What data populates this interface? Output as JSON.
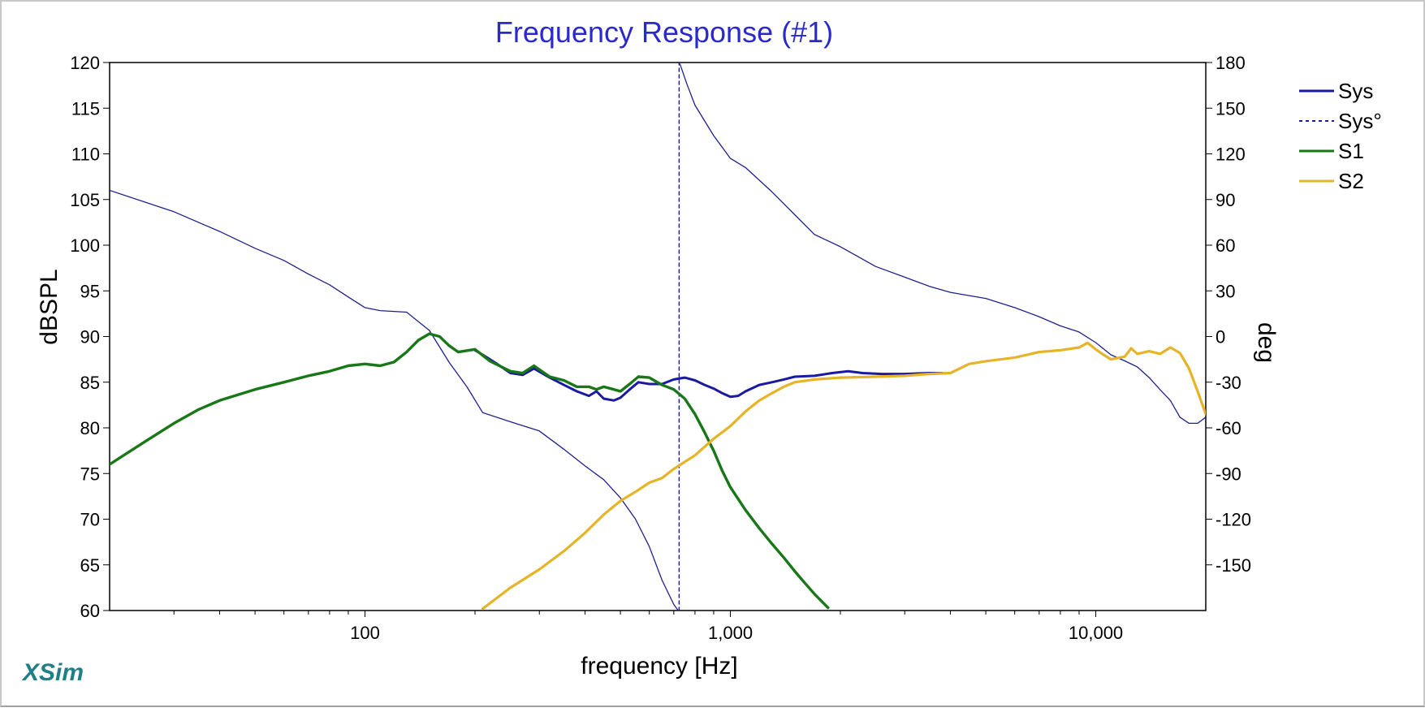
{
  "chart_data": {
    "type": "line",
    "title": "Frequency Response (#1)",
    "xlabel": "frequency [Hz]",
    "ylabel": "dBSPL",
    "y2label": "deg",
    "xscale": "log",
    "xlim": [
      20,
      20000
    ],
    "ylim": [
      60,
      120
    ],
    "y2lim": [
      -180,
      180
    ],
    "grid": true,
    "legend_position": "right",
    "x_tick_labels": [
      {
        "value": 100,
        "label": "100"
      },
      {
        "value": 1000,
        "label": "1,000"
      },
      {
        "value": 10000,
        "label": "10,000"
      }
    ],
    "y_ticks": [
      60,
      65,
      70,
      75,
      80,
      85,
      90,
      95,
      100,
      105,
      110,
      115,
      120
    ],
    "y2_tick_labels": [
      {
        "value": 180,
        "label": "180"
      },
      {
        "value": 150,
        "label": "150"
      },
      {
        "value": 120,
        "label": "120"
      },
      {
        "value": 90,
        "label": "90"
      },
      {
        "value": 60,
        "label": "60"
      },
      {
        "value": 30,
        "label": "30"
      },
      {
        "value": 0,
        "label": "0"
      },
      {
        "value": -30,
        "label": "-30"
      },
      {
        "value": -60,
        "label": "-60"
      },
      {
        "value": -90,
        "label": "-90"
      },
      {
        "value": -120,
        "label": "-120"
      },
      {
        "value": -150,
        "label": "-150"
      }
    ],
    "series": [
      {
        "name": "Sys",
        "axis": "left",
        "color": "#1a1aa0",
        "width": 3,
        "dash": "",
        "points": [
          [
            200,
            88.5
          ],
          [
            210,
            88.0
          ],
          [
            230,
            87.0
          ],
          [
            250,
            86.0
          ],
          [
            270,
            85.8
          ],
          [
            290,
            86.5
          ],
          [
            320,
            85.5
          ],
          [
            350,
            84.7
          ],
          [
            380,
            84.0
          ],
          [
            410,
            83.5
          ],
          [
            430,
            84.0
          ],
          [
            450,
            83.2
          ],
          [
            480,
            83.0
          ],
          [
            500,
            83.3
          ],
          [
            530,
            84.2
          ],
          [
            560,
            85.0
          ],
          [
            600,
            84.8
          ],
          [
            650,
            84.8
          ],
          [
            700,
            85.3
          ],
          [
            750,
            85.5
          ],
          [
            800,
            85.2
          ],
          [
            850,
            84.7
          ],
          [
            900,
            84.3
          ],
          [
            950,
            83.8
          ],
          [
            1000,
            83.4
          ],
          [
            1050,
            83.5
          ],
          [
            1100,
            84.0
          ],
          [
            1200,
            84.7
          ],
          [
            1300,
            85.0
          ],
          [
            1400,
            85.3
          ],
          [
            1500,
            85.6
          ],
          [
            1700,
            85.7
          ],
          [
            1900,
            86.0
          ],
          [
            2100,
            86.2
          ],
          [
            2300,
            86.0
          ],
          [
            2600,
            85.9
          ],
          [
            3000,
            85.9
          ],
          [
            3500,
            86.0
          ],
          [
            3800,
            86.0
          ]
        ]
      },
      {
        "name": "Sys°",
        "axis": "right",
        "color": "#20208c",
        "width": 1.3,
        "dash": "",
        "points": [
          [
            20,
            96
          ],
          [
            30,
            82
          ],
          [
            40,
            69
          ],
          [
            50,
            58
          ],
          [
            60,
            50
          ],
          [
            70,
            41
          ],
          [
            80,
            34
          ],
          [
            90,
            26
          ],
          [
            100,
            19
          ],
          [
            110,
            17
          ],
          [
            130,
            16
          ],
          [
            150,
            4
          ],
          [
            170,
            -17
          ],
          [
            190,
            -33
          ],
          [
            210,
            -50
          ],
          [
            250,
            -56
          ],
          [
            300,
            -62
          ],
          [
            350,
            -74
          ],
          [
            400,
            -85
          ],
          [
            450,
            -94
          ],
          [
            500,
            -106
          ],
          [
            550,
            -120
          ],
          [
            600,
            -138
          ],
          [
            650,
            -160
          ],
          [
            700,
            -176
          ],
          [
            720,
            -180
          ]
        ]
      },
      {
        "name": "Sys°",
        "axis": "right",
        "color": "#20208c",
        "width": 1.3,
        "dash": "",
        "points": [
          [
            728,
            179
          ],
          [
            760,
            166
          ],
          [
            800,
            152
          ],
          [
            900,
            132
          ],
          [
            1000,
            117
          ],
          [
            1100,
            111
          ],
          [
            1300,
            95
          ],
          [
            1500,
            80
          ],
          [
            1700,
            67
          ],
          [
            2000,
            59
          ],
          [
            2500,
            46
          ],
          [
            3000,
            39
          ],
          [
            3500,
            33
          ],
          [
            4000,
            29
          ],
          [
            5000,
            25
          ],
          [
            6000,
            19
          ],
          [
            7000,
            13
          ],
          [
            8000,
            7
          ],
          [
            9000,
            3
          ],
          [
            10000,
            -4
          ],
          [
            11000,
            -12
          ],
          [
            12000,
            -16
          ],
          [
            13000,
            -20
          ],
          [
            14000,
            -27
          ],
          [
            15000,
            -35
          ],
          [
            16000,
            -42
          ],
          [
            17000,
            -53
          ],
          [
            18000,
            -57
          ],
          [
            19000,
            -57
          ],
          [
            20000,
            -53
          ]
        ]
      },
      {
        "name": "Sys°",
        "axis": "right",
        "color": "#20208c",
        "width": 1.5,
        "dash": "4,4",
        "points": [
          [
            724,
            -180
          ],
          [
            724,
            180
          ]
        ]
      },
      {
        "name": "S1",
        "axis": "left",
        "color": "#187818",
        "width": 3.4,
        "dash": "",
        "points": [
          [
            20,
            76
          ],
          [
            25,
            78.5
          ],
          [
            30,
            80.5
          ],
          [
            35,
            82.0
          ],
          [
            40,
            83.0
          ],
          [
            50,
            84.2
          ],
          [
            60,
            85.0
          ],
          [
            70,
            85.7
          ],
          [
            80,
            86.2
          ],
          [
            90,
            86.8
          ],
          [
            100,
            87.0
          ],
          [
            110,
            86.8
          ],
          [
            120,
            87.2
          ],
          [
            130,
            88.3
          ],
          [
            140,
            89.6
          ],
          [
            150,
            90.3
          ],
          [
            160,
            90.0
          ],
          [
            170,
            89.0
          ],
          [
            180,
            88.3
          ],
          [
            200,
            88.6
          ],
          [
            220,
            87.3
          ],
          [
            250,
            86.2
          ],
          [
            270,
            86.0
          ],
          [
            290,
            86.8
          ],
          [
            320,
            85.6
          ],
          [
            350,
            85.2
          ],
          [
            380,
            84.5
          ],
          [
            410,
            84.5
          ],
          [
            430,
            84.2
          ],
          [
            450,
            84.5
          ],
          [
            480,
            84.2
          ],
          [
            500,
            84.0
          ],
          [
            530,
            84.8
          ],
          [
            560,
            85.6
          ],
          [
            600,
            85.5
          ],
          [
            650,
            84.7
          ],
          [
            700,
            84.2
          ],
          [
            750,
            83.2
          ],
          [
            800,
            81.5
          ],
          [
            850,
            79.5
          ],
          [
            900,
            77.5
          ],
          [
            950,
            75.3
          ],
          [
            1000,
            73.5
          ],
          [
            1100,
            71.0
          ],
          [
            1200,
            69.0
          ],
          [
            1300,
            67.3
          ],
          [
            1400,
            65.8
          ],
          [
            1500,
            64.3
          ],
          [
            1600,
            63.0
          ],
          [
            1700,
            61.8
          ],
          [
            1850,
            60.3
          ]
        ]
      },
      {
        "name": "S2",
        "axis": "left",
        "color": "#e6b428",
        "width": 3.2,
        "dash": "",
        "points": [
          [
            210,
            60.2
          ],
          [
            250,
            62.5
          ],
          [
            300,
            64.5
          ],
          [
            350,
            66.5
          ],
          [
            400,
            68.5
          ],
          [
            450,
            70.5
          ],
          [
            500,
            72.0
          ],
          [
            550,
            73.0
          ],
          [
            600,
            74.0
          ],
          [
            650,
            74.5
          ],
          [
            700,
            75.5
          ],
          [
            800,
            77.0
          ],
          [
            900,
            78.8
          ],
          [
            1000,
            80.2
          ],
          [
            1100,
            81.8
          ],
          [
            1200,
            83.0
          ],
          [
            1300,
            83.8
          ],
          [
            1400,
            84.5
          ],
          [
            1500,
            85.0
          ],
          [
            1700,
            85.3
          ],
          [
            2000,
            85.5
          ],
          [
            2500,
            85.6
          ],
          [
            3000,
            85.7
          ],
          [
            3500,
            85.9
          ],
          [
            4000,
            86.0
          ],
          [
            4500,
            87.0
          ],
          [
            5000,
            87.3
          ],
          [
            6000,
            87.7
          ],
          [
            7000,
            88.3
          ],
          [
            8000,
            88.5
          ],
          [
            9000,
            88.8
          ],
          [
            9500,
            89.3
          ],
          [
            10000,
            88.6
          ],
          [
            10500,
            88.0
          ],
          [
            11000,
            87.5
          ],
          [
            12000,
            87.8
          ],
          [
            12500,
            88.7
          ],
          [
            13000,
            88.1
          ],
          [
            14000,
            88.4
          ],
          [
            15000,
            88.1
          ],
          [
            16000,
            88.8
          ],
          [
            17000,
            88.2
          ],
          [
            18000,
            86.5
          ],
          [
            19000,
            84.0
          ],
          [
            20000,
            81.5
          ]
        ]
      }
    ],
    "legend": [
      {
        "name": "Sys",
        "color": "#1a1aa0",
        "dash": ""
      },
      {
        "name": "Sys°",
        "color": "#20208c",
        "dash": "4,4"
      },
      {
        "name": "S1",
        "color": "#187818",
        "dash": ""
      },
      {
        "name": "S2",
        "color": "#e6b428",
        "dash": ""
      }
    ]
  },
  "brand": "XSim"
}
